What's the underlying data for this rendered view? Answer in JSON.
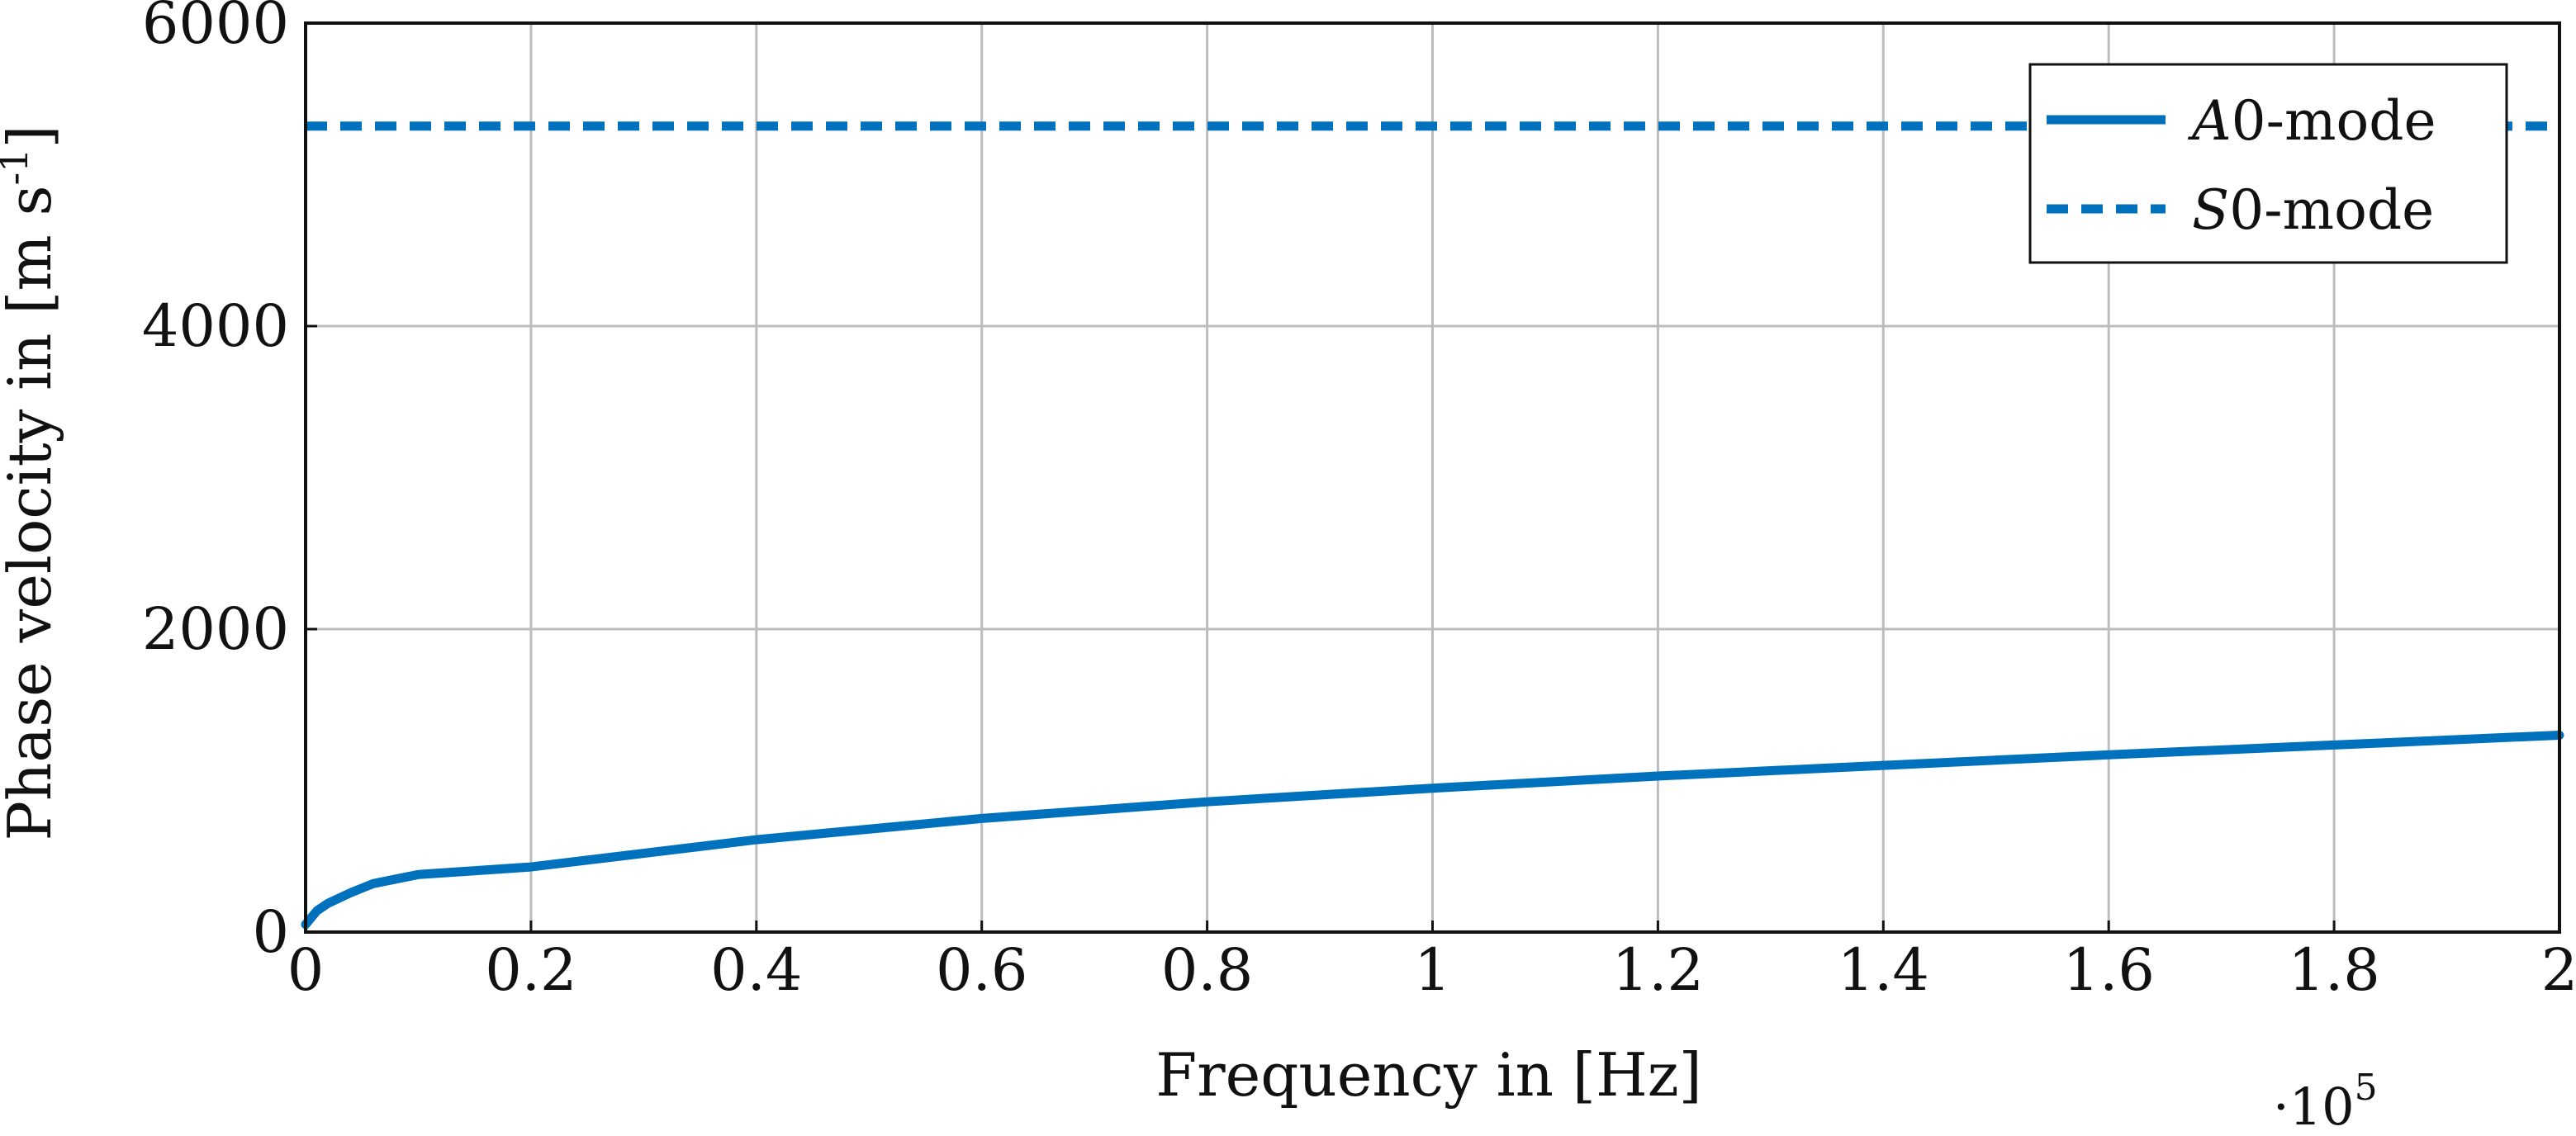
{
  "chart_data": {
    "type": "line",
    "title": "",
    "xlabel": "Frequency in [Hz]",
    "ylabel": "Phase velocity in [m s-1]",
    "ylabel_parts": {
      "main": "Phase velocity in [m s",
      "sup": "-1",
      "close": "]"
    },
    "x_multiplier": {
      "prefix": "·10",
      "exponent": "5"
    },
    "xlim": [
      0,
      2
    ],
    "ylim": [
      0,
      6000
    ],
    "xticks": [
      0,
      0.2,
      0.4,
      0.6,
      0.8,
      1,
      1.2,
      1.4,
      1.6,
      1.8,
      2
    ],
    "xtick_labels": [
      "0",
      "0.2",
      "0.4",
      "0.6",
      "0.8",
      "1",
      "1.2",
      "1.4",
      "1.6",
      "1.8",
      "2"
    ],
    "yticks": [
      0,
      2000,
      4000,
      6000
    ],
    "ytick_labels": [
      "0",
      "2000",
      "4000",
      "6000"
    ],
    "grid": true,
    "legend_position": "top-right",
    "series": [
      {
        "name": "A0-mode",
        "legend_italic": "A",
        "legend_rest": "0-mode",
        "style": "solid",
        "color": "#0072BD",
        "x": [
          0,
          0.005,
          0.01,
          0.02,
          0.04,
          0.06,
          0.1,
          0.2,
          0.4,
          0.6,
          0.8,
          1.0,
          1.2,
          1.4,
          1.6,
          1.8,
          2.0
        ],
        "y": [
          50,
          95,
          140,
          190,
          260,
          320,
          380,
          430,
          610,
          750,
          860,
          950,
          1030,
          1100,
          1170,
          1235,
          1300
        ]
      },
      {
        "name": "S0-mode",
        "legend_italic": "S",
        "legend_rest": "0-mode",
        "style": "dashed",
        "color": "#0072BD",
        "x": [
          0,
          0.5,
          1.0,
          1.5,
          2.0
        ],
        "y": [
          5320,
          5320,
          5320,
          5320,
          5320
        ]
      }
    ]
  }
}
